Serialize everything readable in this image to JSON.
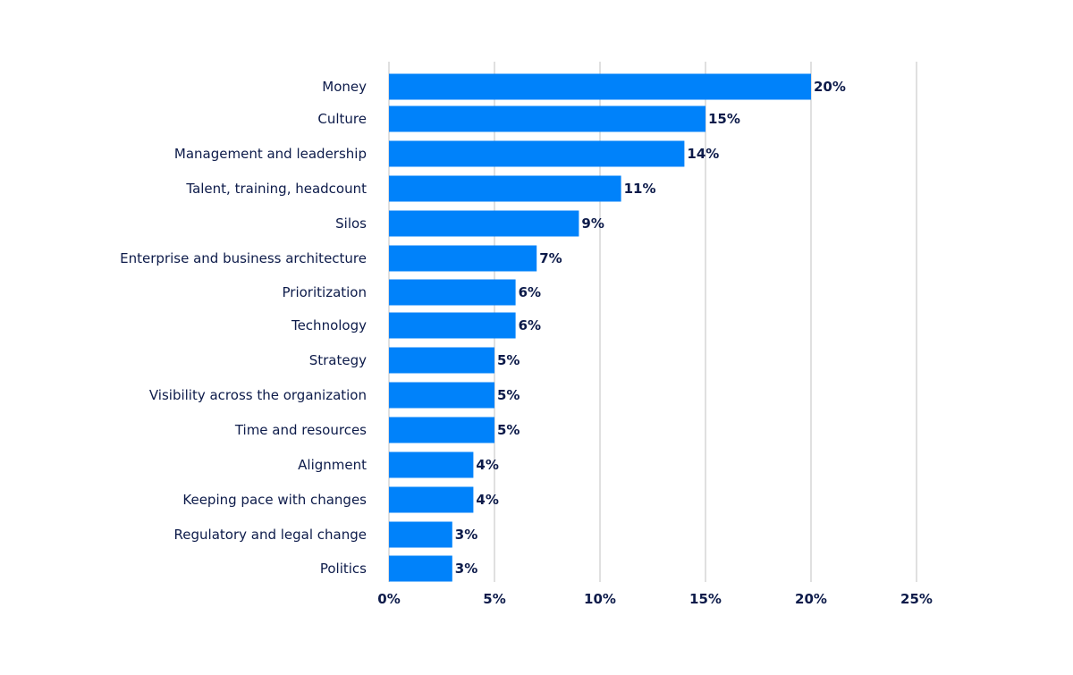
{
  "chart_data": {
    "type": "bar",
    "orientation": "horizontal",
    "categories": [
      "Money",
      "Culture",
      "Management and leadership",
      "Talent, training, headcount",
      "Silos",
      "Enterprise and business architecture",
      "Prioritization",
      "Technology",
      "Strategy",
      "Visibility across the organization",
      "Time and resources",
      "Alignment",
      "Keeping pace with changes",
      "Regulatory and legal change",
      "Politics"
    ],
    "values": [
      20,
      15,
      14,
      11,
      9,
      7,
      6,
      6,
      5,
      5,
      5,
      4,
      4,
      3,
      3
    ],
    "data_labels": [
      "20%",
      "15%",
      "14%",
      "11%",
      "9%",
      "7%",
      "6%",
      "6%",
      "5%",
      "5%",
      "5%",
      "4%",
      "4%",
      "3%",
      "3%"
    ],
    "xlim": [
      0,
      25
    ],
    "x_ticks": [
      0,
      5,
      10,
      15,
      20,
      25
    ],
    "x_tick_labels": [
      "0%",
      "5%",
      "10%",
      "15%",
      "20%",
      "25%"
    ],
    "grid": "vertical",
    "bar_color": "#0082fa",
    "text_color": "#0d1b4a",
    "grid_color": "#d0d0d0"
  }
}
